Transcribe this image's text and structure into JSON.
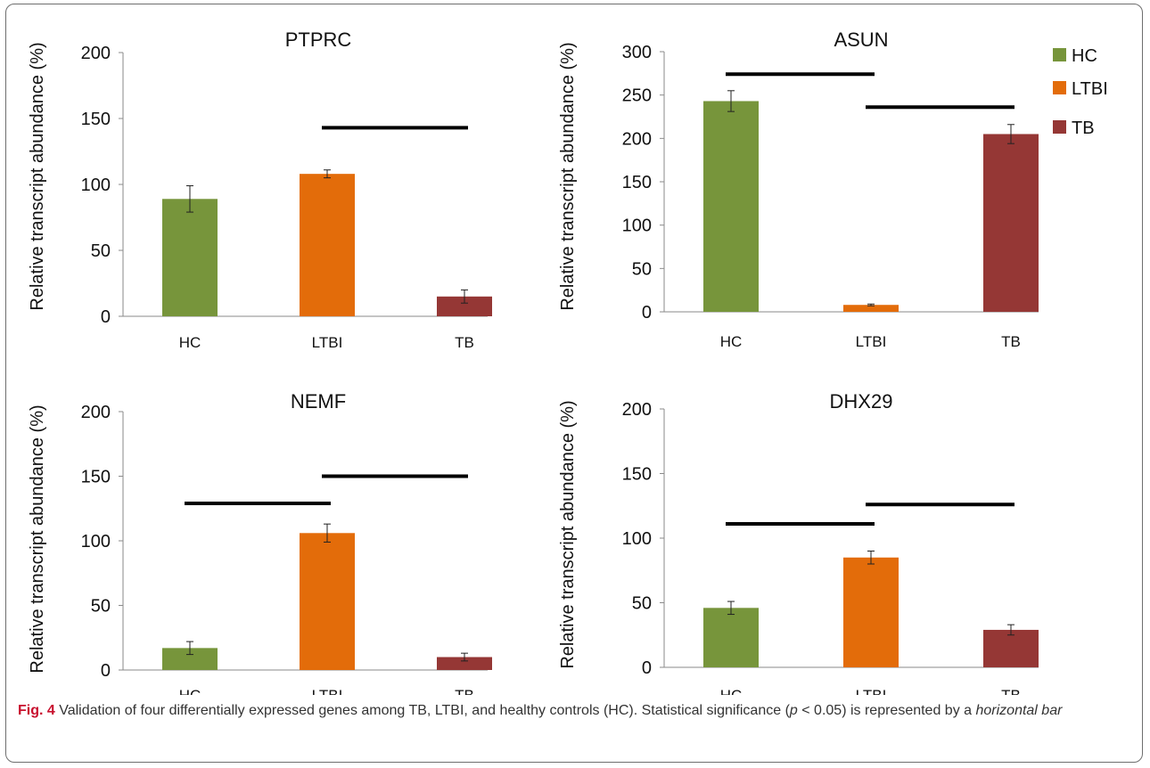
{
  "legend": [
    {
      "name": "HC",
      "color": "#77953b"
    },
    {
      "name": "LTBI",
      "color": "#e36c0a"
    },
    {
      "name": "TB",
      "color": "#953735"
    }
  ],
  "chart_data": [
    {
      "type": "bar",
      "title": "PTPRC",
      "ylabel": "Relative transcript abundance (%)",
      "categories": [
        "HC",
        "LTBI",
        "TB"
      ],
      "values": [
        89,
        108,
        15
      ],
      "errors": [
        10,
        3,
        5
      ],
      "ylim": [
        0,
        200
      ],
      "yticks": [
        0,
        50,
        100,
        150,
        200
      ],
      "significance": [
        {
          "from": "LTBI",
          "to": "TB",
          "y": 143
        }
      ]
    },
    {
      "type": "bar",
      "title": "ASUN",
      "ylabel": "Relative transcript abundance (%)",
      "categories": [
        "HC",
        "LTBI",
        "TB"
      ],
      "values": [
        243,
        8,
        205
      ],
      "errors": [
        12,
        1,
        11
      ],
      "ylim": [
        0,
        300
      ],
      "yticks": [
        0,
        50,
        100,
        150,
        200,
        250,
        300
      ],
      "significance": [
        {
          "from": "HC",
          "to": "LTBI",
          "y": 274
        },
        {
          "from": "LTBI",
          "to": "TB",
          "y": 236
        }
      ]
    },
    {
      "type": "bar",
      "title": "NEMF",
      "ylabel": "Relative transcript abundance (%)",
      "categories": [
        "HC",
        "LTBI",
        "TB"
      ],
      "values": [
        17,
        106,
        10
      ],
      "errors": [
        5,
        7,
        3
      ],
      "ylim": [
        0,
        200
      ],
      "yticks": [
        0,
        50,
        100,
        150,
        200
      ],
      "significance": [
        {
          "from": "HC",
          "to": "LTBI",
          "y": 129
        },
        {
          "from": "LTBI",
          "to": "TB",
          "y": 150
        }
      ]
    },
    {
      "type": "bar",
      "title": "DHX29",
      "ylabel": "Relative transcript abundance (%)",
      "categories": [
        "HC",
        "LTBI",
        "TB"
      ],
      "values": [
        46,
        85,
        29
      ],
      "errors": [
        5,
        5,
        4
      ],
      "ylim": [
        0,
        200
      ],
      "yticks": [
        0,
        50,
        100,
        150,
        200
      ],
      "significance": [
        {
          "from": "HC",
          "to": "LTBI",
          "y": 111
        },
        {
          "from": "LTBI",
          "to": "TB",
          "y": 126
        }
      ]
    }
  ],
  "caption": {
    "label": "Fig. 4",
    "text_a": " Validation of four differentially expressed genes among TB, LTBI, and healthy controls (HC). Statistical significance (",
    "p_symbol": "p",
    "text_b": " < 0.05) is represented by a ",
    "italic_tail": "horizontal bar"
  }
}
